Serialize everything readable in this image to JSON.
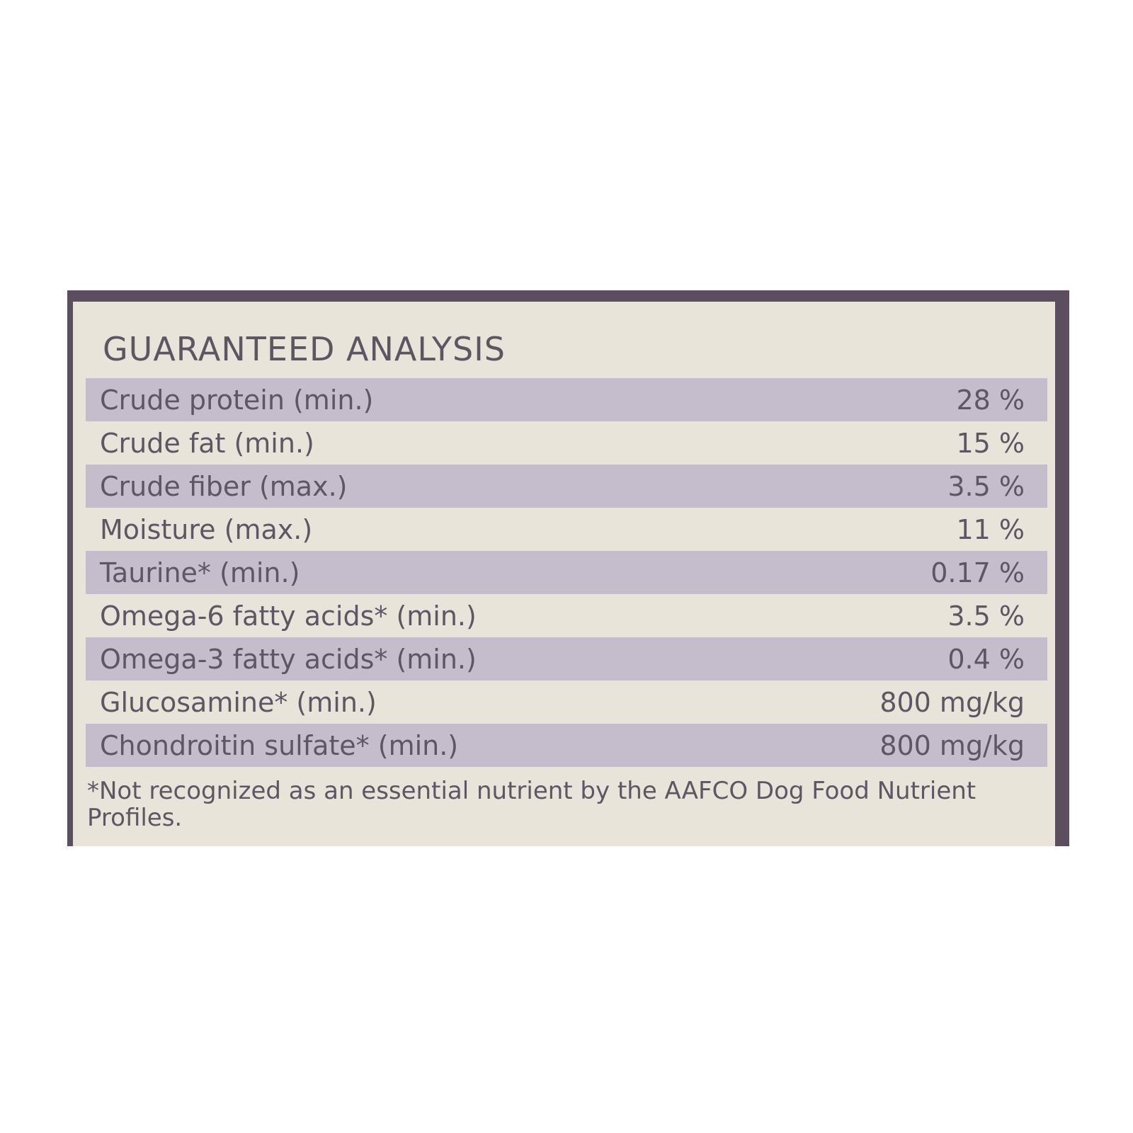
{
  "header": {
    "title": "GUARANTEED ANALYSIS"
  },
  "table": {
    "rows": [
      [
        "Crude protein (min.)",
        "28 %"
      ],
      [
        "Crude fat (min.)",
        "15 %"
      ],
      [
        "Crude fiber (max.)",
        "3.5 %"
      ],
      [
        "Moisture (max.)",
        "11 %"
      ],
      [
        "Taurine* (min.)",
        "0.17 %"
      ],
      [
        "Omega-6 fatty acids* (min.)",
        "3.5 %"
      ],
      [
        "Omega-3 fatty acids* (min.)",
        "0.4 %"
      ],
      [
        "Glucosamine* (min.)",
        "800 mg/kg"
      ],
      [
        "Chondroitin sulfate* (min.)",
        "800 mg/kg"
      ]
    ]
  },
  "footnote": "*Not recognized as an essential nutrient by the AAFCO Dog Food Nutrient Profiles."
}
